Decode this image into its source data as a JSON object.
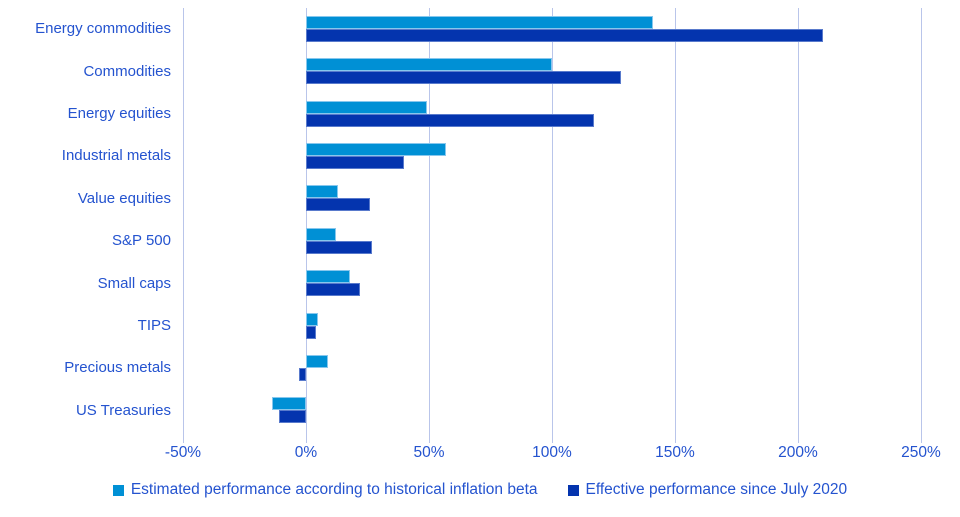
{
  "chart_data": {
    "type": "bar",
    "orientation": "horizontal",
    "title": "",
    "categories": [
      "Energy commodities",
      "Commodities",
      "Energy equities",
      "Industrial metals",
      "Value equities",
      "S&P 500",
      "Small caps",
      "TIPS",
      "Precious metals",
      "US Treasuries"
    ],
    "series": [
      {
        "name": "Estimated performance according to historical inflation beta",
        "color": "#0090d5",
        "values": [
          141,
          100,
          49,
          57,
          13,
          12,
          18,
          5,
          9,
          -14
        ]
      },
      {
        "name": "Effective performance since July 2020",
        "color": "#0434ae",
        "values": [
          210,
          128,
          117,
          40,
          26,
          27,
          22,
          4,
          -3,
          -11
        ]
      }
    ],
    "x_axis": {
      "min": -50,
      "max": 250,
      "tick_step": 50,
      "tick_values": [
        -50,
        0,
        50,
        100,
        150,
        200,
        250
      ],
      "tick_labels": [
        "-50%",
        "0%",
        "50%",
        "100%",
        "150%",
        "200%",
        "250%"
      ],
      "unit": "%"
    },
    "grid": "vertical",
    "legend_position": "bottom"
  },
  "colors": {
    "background": "#ffffff",
    "gridline": "#b9c5ea",
    "text": "#2453cf",
    "series_estimated": "#0090d5",
    "series_effective": "#0434ae"
  }
}
